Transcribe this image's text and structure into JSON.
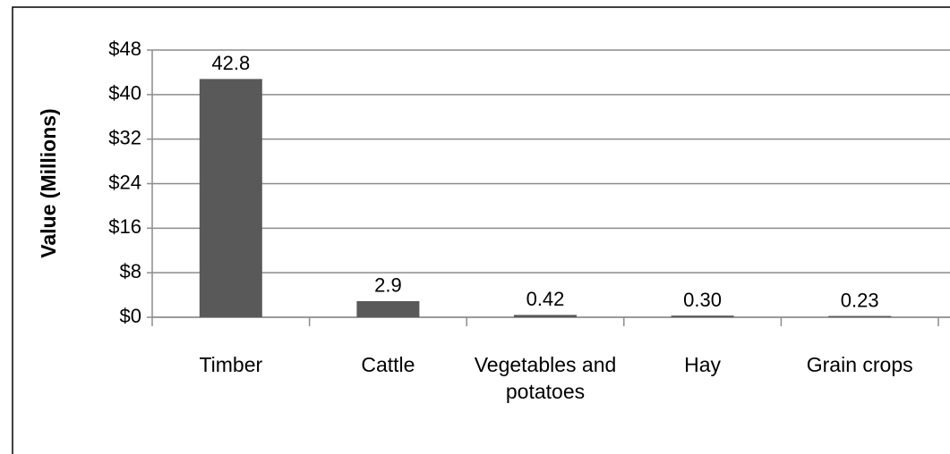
{
  "chart_data": {
    "type": "bar",
    "y_axis_label": "Value (Millions)",
    "categories": [
      "Timber",
      "Cattle",
      "Vegetables and potatoes",
      "Hay",
      "Grain crops"
    ],
    "values": [
      42.8,
      2.9,
      0.42,
      0.3,
      0.23
    ],
    "value_labels": [
      "42.8",
      "2.9",
      "0.42",
      "0.30",
      "0.23"
    ],
    "color": "#595959",
    "ylim": [
      0,
      48
    ],
    "yticks": [
      {
        "value": 0,
        "label": "$0"
      },
      {
        "value": 8,
        "label": "$8"
      },
      {
        "value": 16,
        "label": "$16"
      },
      {
        "value": 24,
        "label": "$24"
      },
      {
        "value": 32,
        "label": "$32"
      },
      {
        "value": 40,
        "label": "$40"
      },
      {
        "value": 48,
        "label": "$48"
      }
    ],
    "grid": true
  }
}
